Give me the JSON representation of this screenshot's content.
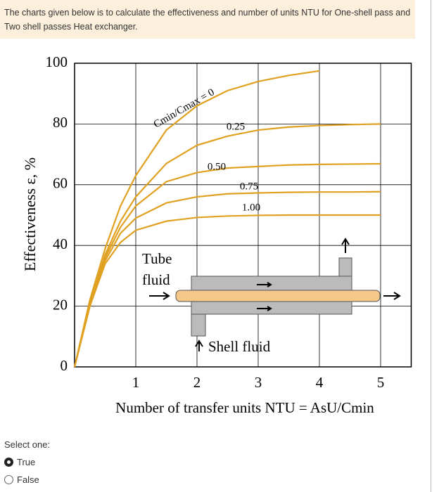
{
  "question": {
    "text": "The charts given below is to calculate the effectiveness and number of units NTU for One-shell pass and Two shell passes Heat exchanger."
  },
  "chart_data": {
    "type": "line",
    "x_label": "Number of transfer units NTU = AsU/Cmin",
    "y_label": "Effectiveness ε, %",
    "x": [
      0,
      0.25,
      0.5,
      0.75,
      1,
      1.5,
      2,
      2.5,
      3,
      3.5,
      4,
      4.5,
      5
    ],
    "series": [
      {
        "name": "Cmin/Cmax = 0",
        "color": "#e0a020",
        "values": [
          0,
          22,
          39,
          53,
          63,
          78,
          86,
          91,
          94,
          96,
          97.5,
          null,
          null
        ]
      },
      {
        "name": "0.25",
        "color": "#e0a020",
        "values": [
          0,
          21,
          37,
          48,
          56,
          67,
          73,
          76,
          78,
          79,
          79.5,
          79.8,
          80
        ]
      },
      {
        "name": "0.50",
        "color": "#e0a020",
        "values": [
          0,
          21,
          36,
          46,
          53,
          61,
          64,
          65.5,
          66,
          66.5,
          66.7,
          66.8,
          66.9
        ]
      },
      {
        "name": "0.75",
        "color": "#e0a020",
        "values": [
          0,
          20,
          35,
          44,
          49,
          54,
          56,
          57,
          57.3,
          57.5,
          57.6,
          57.6,
          57.7
        ]
      },
      {
        "name": "1.00",
        "color": "#e0a020",
        "values": [
          0,
          20,
          34,
          41,
          45,
          48,
          49.2,
          49.7,
          49.9,
          50,
          50,
          50,
          50
        ]
      }
    ],
    "xlim": [
      0,
      5.5
    ],
    "ylim": [
      0,
      100
    ],
    "xticks": [
      1,
      2,
      3,
      4,
      5
    ],
    "yticks": [
      0,
      20,
      40,
      60,
      80,
      100
    ],
    "grid": true,
    "inset": {
      "tube_label_1": "Tube",
      "tube_label_2": "fluid",
      "shell_label": "Shell fluid"
    }
  },
  "answer": {
    "prompt": "Select one:",
    "options": [
      "True",
      "False"
    ]
  }
}
